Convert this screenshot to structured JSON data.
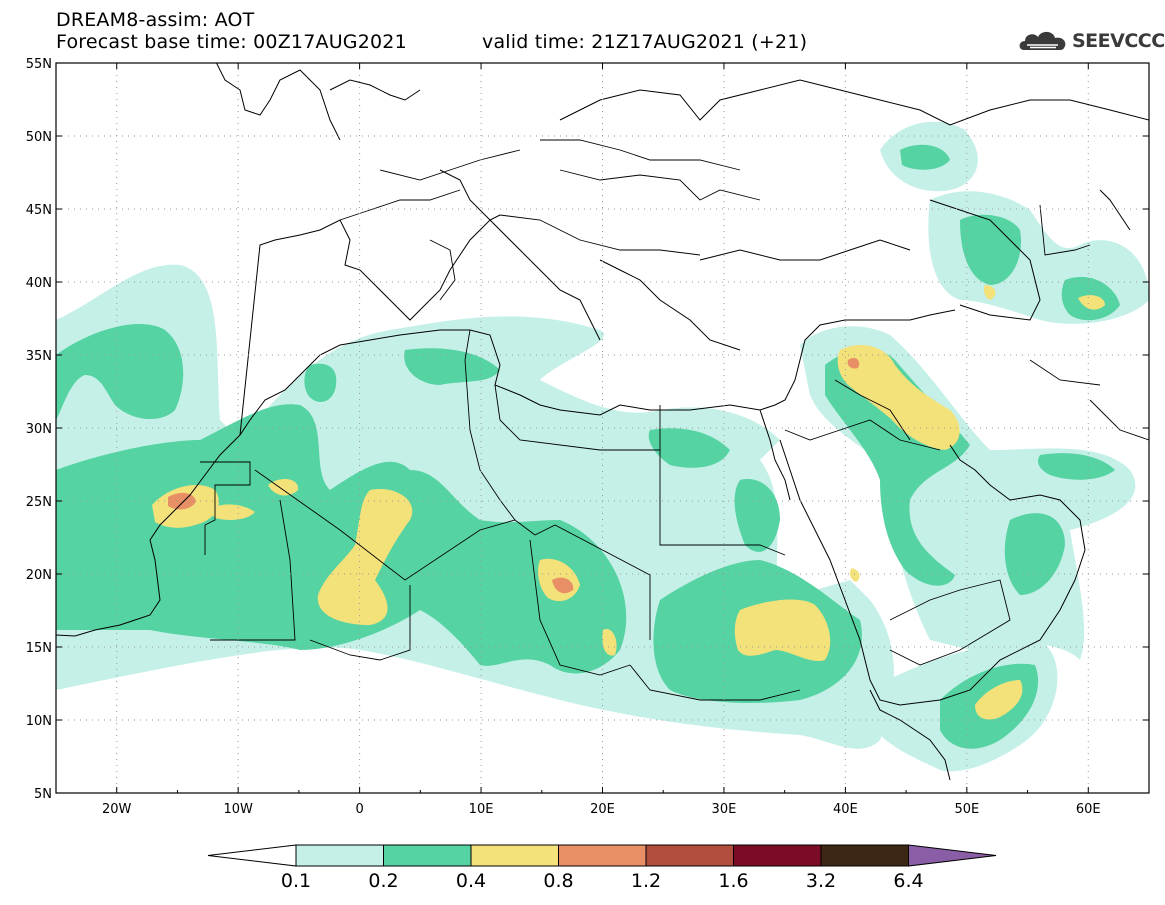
{
  "header": {
    "line1": "DREAM8-assim: AOT",
    "line2_base": "Forecast base time: 00Z17AUG2021",
    "line2_valid": "valid time: 21Z17AUG2021 (+21)"
  },
  "logo": {
    "text": "SEEVCCC"
  },
  "map": {
    "lon_range": [
      -25,
      65
    ],
    "lat_range": [
      5,
      55
    ],
    "lat_labels": [
      "55N",
      "50N",
      "45N",
      "40N",
      "35N",
      "30N",
      "25N",
      "20N",
      "15N",
      "10N",
      "5N"
    ],
    "lon_labels": [
      "20W",
      "10W",
      "0",
      "10E",
      "20E",
      "30E",
      "40E",
      "50E",
      "60E"
    ],
    "grid": "dotted"
  },
  "colorbar": {
    "labels": [
      "0.1",
      "0.2",
      "0.4",
      "0.8",
      "1.2",
      "1.6",
      "3.2",
      "6.4"
    ],
    "colors": [
      "#ffffff",
      "#c5f0e8",
      "#55d3a3",
      "#f3e17a",
      "#e88f66",
      "#b14d3c",
      "#7a0c25",
      "#3d2714",
      "#8a5ea6"
    ]
  }
}
